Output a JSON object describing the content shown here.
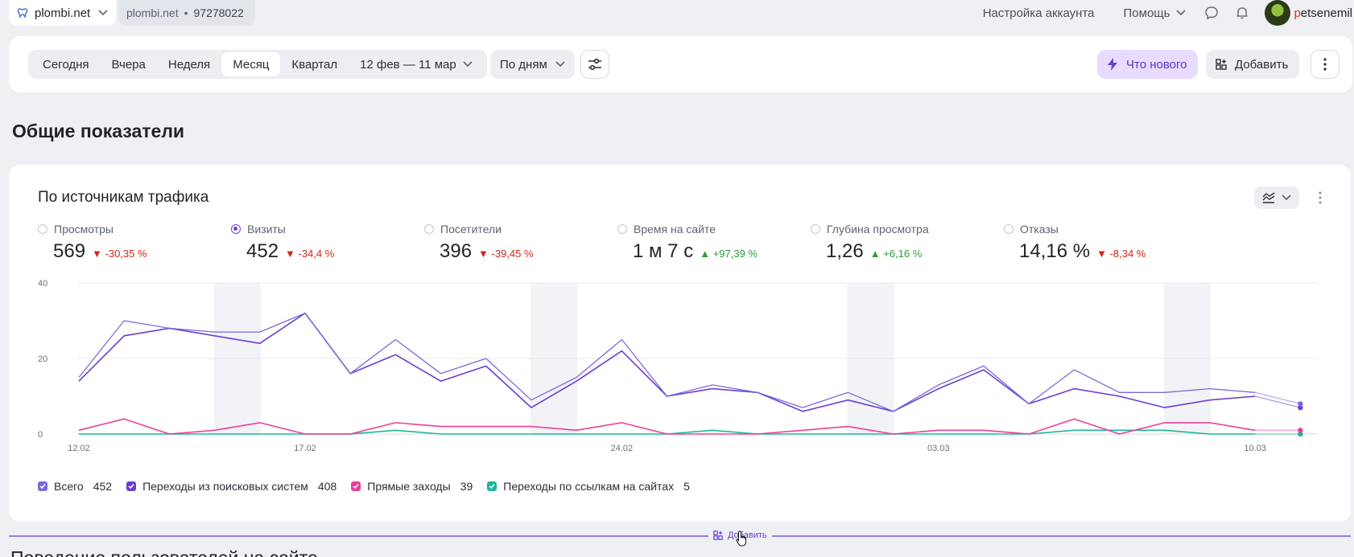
{
  "topbar": {
    "site_name": "plombi.net",
    "counter_site": "plombi.net",
    "counter_sep": "•",
    "counter_id": "97278022",
    "account_settings": "Настройка аккаунта",
    "help": "Помощь",
    "user_first": "p",
    "user_rest": "etsenemil"
  },
  "filters": {
    "periods": [
      "Сегодня",
      "Вчера",
      "Неделя",
      "Месяц",
      "Квартал"
    ],
    "active_period": "Месяц",
    "date_range": "12 фев — 11 мар",
    "grouping": "По дням",
    "whats_new": "Что нового",
    "add": "Добавить"
  },
  "section_title": "Общие показатели",
  "widget": {
    "title": "По источникам трафика",
    "metrics": [
      {
        "label": "Просмотры",
        "value": "569",
        "delta": "-30,35 %",
        "direction": "down",
        "selected": false
      },
      {
        "label": "Визиты",
        "value": "452",
        "delta": "-34,4 %",
        "direction": "down",
        "selected": true
      },
      {
        "label": "Посетители",
        "value": "396",
        "delta": "-39,45 %",
        "direction": "down",
        "selected": false
      },
      {
        "label": "Время на сайте",
        "value": "1 м 7 с",
        "delta": "+97,39 %",
        "direction": "up",
        "selected": false
      },
      {
        "label": "Глубина просмотра",
        "value": "1,26",
        "delta": "+6,16 %",
        "direction": "up",
        "selected": false
      },
      {
        "label": "Отказы",
        "value": "14,16 %",
        "delta": "-8,34 %",
        "direction": "down",
        "selected": false
      }
    ],
    "legend": [
      {
        "name": "Всего",
        "count": "452",
        "color": "#7b6ad9"
      },
      {
        "name": "Переходы из поисковых систем",
        "count": "408",
        "color": "#6b3fd4"
      },
      {
        "name": "Прямые заходы",
        "count": "39",
        "color": "#e8409a"
      },
      {
        "name": "Переходы по ссылкам на сайтах",
        "count": "5",
        "color": "#1fb59a"
      }
    ]
  },
  "chart_data": {
    "type": "line",
    "x": [
      "12.02",
      "13.02",
      "14.02",
      "15.02",
      "16.02",
      "17.02",
      "18.02",
      "19.02",
      "20.02",
      "21.02",
      "22.02",
      "23.02",
      "24.02",
      "25.02",
      "26.02",
      "27.02",
      "28.02",
      "01.03",
      "02.03",
      "03.03",
      "04.03",
      "05.03",
      "06.03",
      "07.03",
      "08.03",
      "09.03",
      "10.03",
      "11.03"
    ],
    "x_tick_labels": [
      "12.02",
      "17.02",
      "24.02",
      "03.03",
      "10.03"
    ],
    "y_tick_labels": [
      "0",
      "20",
      "40"
    ],
    "ylim": [
      0,
      40
    ],
    "grid": true,
    "weekend_bands": [
      [
        "15.02",
        "16.02"
      ],
      [
        "22.02",
        "23.02"
      ],
      [
        "01.03",
        "02.03"
      ],
      [
        "08.03",
        "09.03"
      ]
    ],
    "series": [
      {
        "name": "Всего",
        "color": "#7b6ad9",
        "values": [
          15,
          30,
          28,
          27,
          27,
          32,
          16,
          25,
          16,
          20,
          9,
          15,
          25,
          10,
          13,
          11,
          7,
          11,
          6,
          13,
          18,
          8,
          17,
          11,
          11,
          12,
          11,
          8
        ]
      },
      {
        "name": "Переходы из поисковых систем",
        "color": "#6b3fd4",
        "values": [
          14,
          26,
          28,
          26,
          24,
          32,
          16,
          21,
          14,
          18,
          7,
          14,
          22,
          10,
          12,
          11,
          6,
          9,
          6,
          12,
          17,
          8,
          12,
          10,
          7,
          9,
          10,
          7
        ]
      },
      {
        "name": "Прямые заходы",
        "color": "#e8409a",
        "values": [
          1,
          4,
          0,
          1,
          3,
          0,
          0,
          3,
          2,
          2,
          2,
          1,
          3,
          0,
          0,
          0,
          1,
          2,
          0,
          1,
          1,
          0,
          4,
          0,
          3,
          3,
          1,
          1
        ]
      },
      {
        "name": "Переходы по ссылкам на сайтах",
        "color": "#1fb59a",
        "values": [
          0,
          0,
          0,
          0,
          0,
          0,
          0,
          1,
          0,
          0,
          0,
          0,
          0,
          0,
          1,
          0,
          0,
          0,
          0,
          0,
          0,
          0,
          1,
          1,
          1,
          0,
          0,
          0
        ]
      }
    ]
  },
  "add_widget": "Добавить",
  "next_section_title": "Поведение пользователей на сайте"
}
